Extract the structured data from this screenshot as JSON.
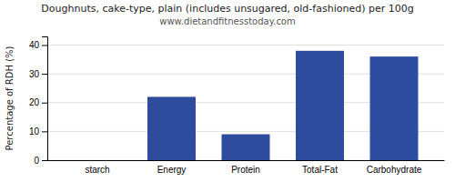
{
  "chart_data": {
    "type": "bar",
    "title": "Doughnuts, cake-type, plain (includes unsugared, old-fashioned) per 100g",
    "subtitle": "www.dietandfitnesstoday.com",
    "categories": [
      "starch",
      "Energy",
      "Protein",
      "Total-Fat",
      "Carbohydrate"
    ],
    "values": [
      0,
      22,
      9,
      38,
      36
    ],
    "color": "#2e4c9e",
    "ylabel": "Percentage of RDH (%)",
    "ylim": [
      0,
      43
    ],
    "yticks": [
      0,
      10,
      20,
      30,
      40
    ],
    "grid": true
  }
}
